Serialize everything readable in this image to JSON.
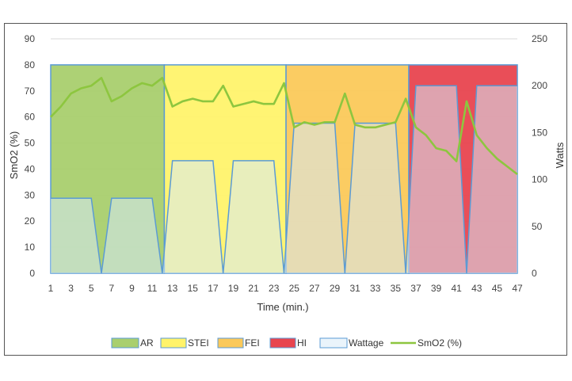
{
  "chart_data": {
    "type": "area",
    "xlabel": "Time (min.)",
    "ylabel": "SmO2 (%)",
    "y2label": "Watts",
    "x_ticks": [
      1,
      3,
      5,
      7,
      9,
      11,
      13,
      15,
      17,
      19,
      21,
      23,
      25,
      27,
      29,
      31,
      33,
      35,
      37,
      39,
      41,
      43,
      45,
      47
    ],
    "ylim": [
      0,
      90
    ],
    "y_ticks": [
      0,
      10,
      20,
      30,
      40,
      50,
      60,
      70,
      80,
      90
    ],
    "y2lim": [
      0,
      250
    ],
    "y2_ticks": [
      0,
      50,
      100,
      150,
      200,
      250
    ],
    "grid": true,
    "legend_position": "bottom",
    "zones": [
      {
        "name": "AR",
        "x_start": 1,
        "x_end": 12.2,
        "level": 80,
        "color": "#a9cf6e",
        "stroke": "#5b9bd5"
      },
      {
        "name": "STEI",
        "x_start": 12.2,
        "x_end": 24.2,
        "level": 80,
        "color": "#fff36b",
        "stroke": "#5b9bd5"
      },
      {
        "name": "FEI",
        "x_start": 24.2,
        "x_end": 36.3,
        "level": 80,
        "color": "#fbc95a",
        "stroke": "#5b9bd5"
      },
      {
        "name": "HI",
        "x_start": 36.3,
        "x_end": 47,
        "level": 80,
        "color": "#e8454f",
        "stroke": "#5b9bd5"
      }
    ],
    "series": [
      {
        "name": "Wattage",
        "axis": "y2",
        "color": "#d6eaf8",
        "stroke": "#5b9bd5",
        "points": [
          [
            1,
            80
          ],
          [
            5,
            80
          ],
          [
            6,
            0
          ],
          [
            7,
            80
          ],
          [
            11,
            80
          ],
          [
            12,
            0
          ],
          [
            13,
            120
          ],
          [
            17,
            120
          ],
          [
            18,
            0
          ],
          [
            19,
            120
          ],
          [
            23,
            120
          ],
          [
            24,
            0
          ],
          [
            25,
            160
          ],
          [
            29,
            160
          ],
          [
            30,
            0
          ],
          [
            31,
            160
          ],
          [
            35,
            160
          ],
          [
            36,
            0
          ],
          [
            37,
            200
          ],
          [
            41,
            200
          ],
          [
            42,
            0
          ],
          [
            43,
            200
          ],
          [
            47,
            200
          ]
        ]
      },
      {
        "name": "SmO2 (%)",
        "axis": "y",
        "color": "#8dc63f",
        "points": [
          [
            1,
            60
          ],
          [
            2,
            64
          ],
          [
            3,
            69
          ],
          [
            4,
            71
          ],
          [
            5,
            72
          ],
          [
            6,
            75
          ],
          [
            7,
            66
          ],
          [
            8,
            68
          ],
          [
            9,
            71
          ],
          [
            10,
            73
          ],
          [
            11,
            72
          ],
          [
            12,
            75
          ],
          [
            13,
            64
          ],
          [
            14,
            66
          ],
          [
            15,
            67
          ],
          [
            16,
            66
          ],
          [
            17,
            66
          ],
          [
            18,
            72
          ],
          [
            19,
            64
          ],
          [
            20,
            65
          ],
          [
            21,
            66
          ],
          [
            22,
            65
          ],
          [
            23,
            65
          ],
          [
            24,
            73
          ],
          [
            25,
            56
          ],
          [
            26,
            58
          ],
          [
            27,
            57
          ],
          [
            28,
            58
          ],
          [
            29,
            58
          ],
          [
            30,
            69
          ],
          [
            31,
            57
          ],
          [
            32,
            56
          ],
          [
            33,
            56
          ],
          [
            34,
            57
          ],
          [
            35,
            58
          ],
          [
            36,
            67
          ],
          [
            37,
            56
          ],
          [
            38,
            53
          ],
          [
            39,
            48
          ],
          [
            40,
            47
          ],
          [
            41,
            43
          ],
          [
            42,
            66
          ],
          [
            43,
            53
          ],
          [
            44,
            48
          ],
          [
            45,
            44
          ],
          [
            46,
            41
          ],
          [
            47,
            38
          ]
        ]
      }
    ],
    "legend": [
      "AR",
      "STEI",
      "FEI",
      "HI",
      "Wattage",
      "SmO2 (%)"
    ]
  }
}
